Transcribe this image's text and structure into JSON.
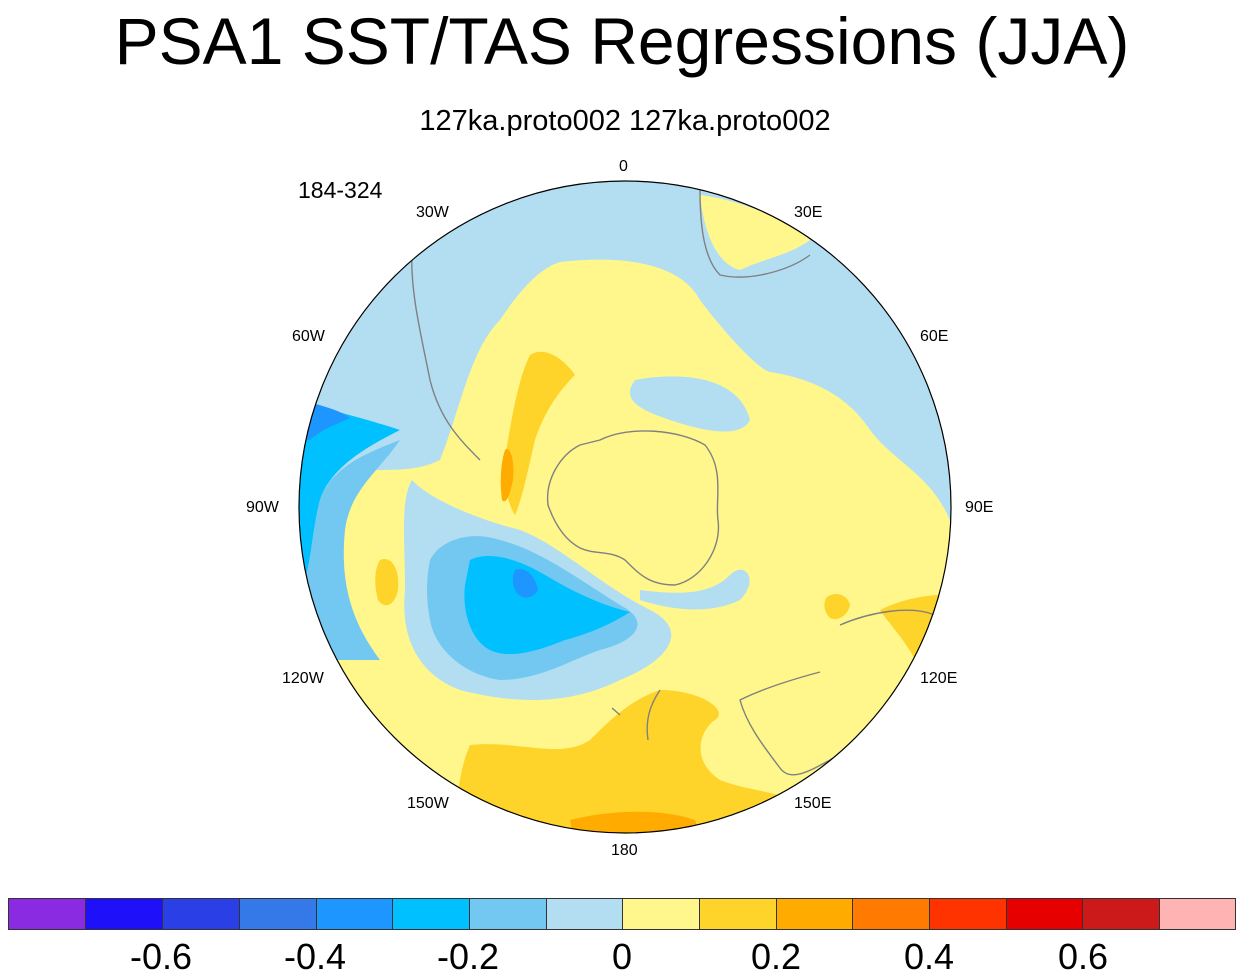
{
  "title": "PSA1 SST/TAS Regressions (JJA)",
  "subtitle": "127ka.proto002  127ka.proto002",
  "period_label": "184-324",
  "longitude_labels": {
    "lon_0": "0",
    "lon_30e": "30E",
    "lon_60e": "60E",
    "lon_90e": "90E",
    "lon_120e": "120E",
    "lon_150e": "150E",
    "lon_180": "180",
    "lon_150w": "150W",
    "lon_120w": "120W",
    "lon_90w": "90W",
    "lon_60w": "60W",
    "lon_30w": "30W"
  },
  "colors": {
    "c_m07": "#8a2be2",
    "c_m06": "#1e10f8",
    "c_m05": "#2a40e6",
    "c_m04": "#3578e8",
    "c_m03": "#1e96ff",
    "c_m02": "#00c0ff",
    "c_m01": "#72c8f0",
    "c_m00": "#b3def2",
    "c_p00": "#fff78c",
    "c_p01": "#ffd42a",
    "c_p02": "#ffab00",
    "c_p03": "#ff7a00",
    "c_p04": "#ff3300",
    "c_p05": "#e60000",
    "c_p06": "#cc1a1a",
    "c_p07": "#ffb3b3",
    "coast": "#808080"
  },
  "colorbar": {
    "boxes": [
      "c_m07",
      "c_m06",
      "c_m05",
      "c_m04",
      "c_m03",
      "c_m02",
      "c_m01",
      "c_m00",
      "c_p00",
      "c_p01",
      "c_p02",
      "c_p03",
      "c_p04",
      "c_p05",
      "c_p06",
      "c_p07"
    ],
    "labels": {
      "l1": "-0.6",
      "l2": "-0.4",
      "l3": "-0.2",
      "l4": "0",
      "l5": "0.2",
      "l6": "0.4",
      "l7": "0.6"
    }
  }
}
